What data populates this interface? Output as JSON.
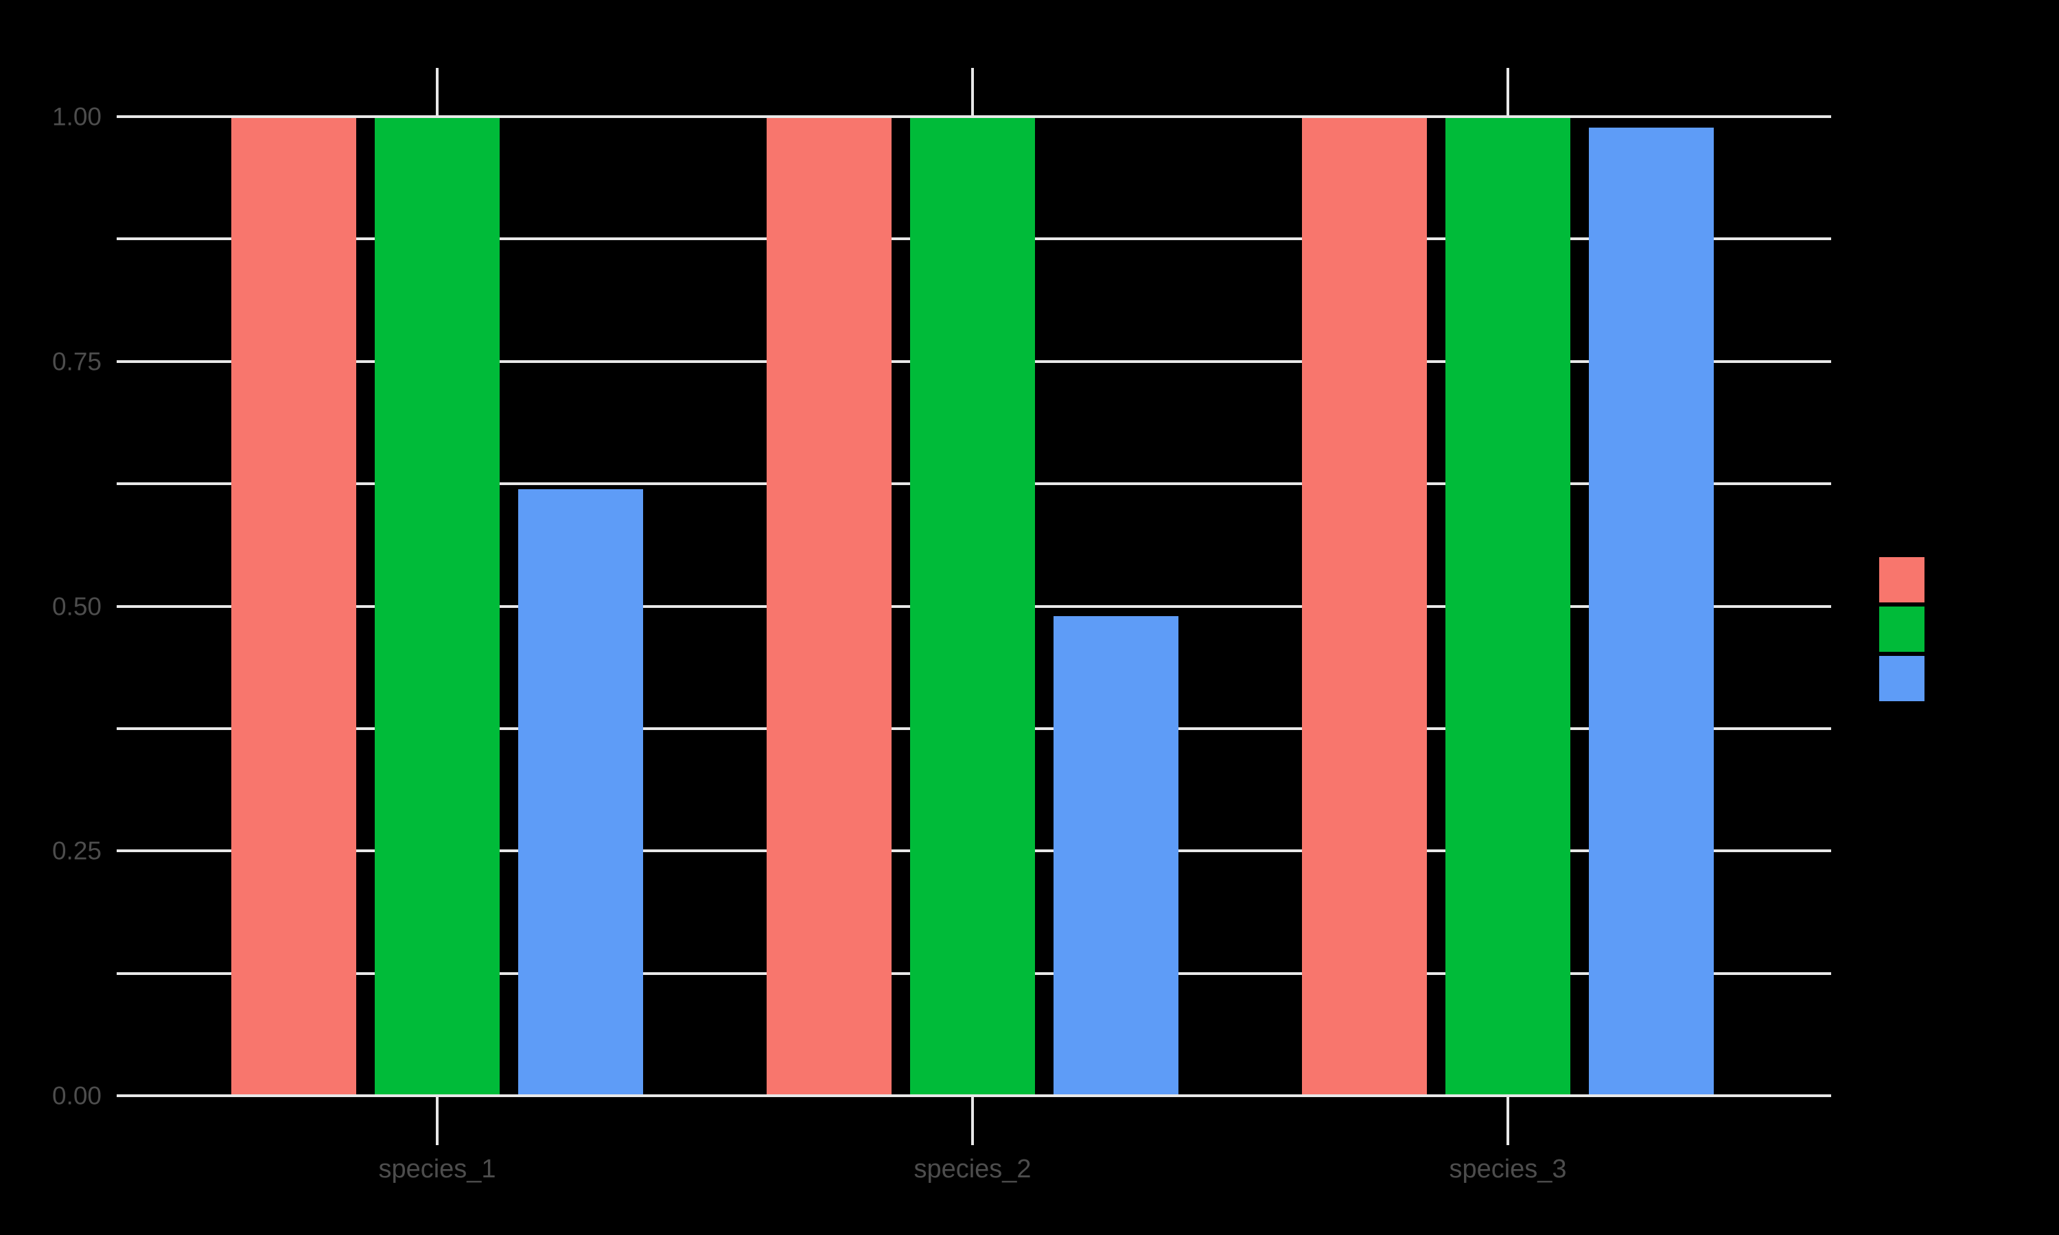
{
  "chart_data": {
    "type": "bar",
    "title": "",
    "categories": [
      "species_1",
      "species_2",
      "species_3"
    ],
    "series": [
      {
        "color": "#F8766D",
        "values": [
          1.0,
          1.0,
          1.0
        ]
      },
      {
        "color": "#00BB39",
        "values": [
          1.0,
          1.0,
          1.0
        ]
      },
      {
        "color": "#5E9CF7",
        "values": [
          0.62,
          0.49,
          0.99
        ]
      }
    ],
    "xlabel": "",
    "ylabel": "",
    "ylim": [
      0,
      1
    ],
    "y_major_ticks": [
      {
        "value": 0.0,
        "label": "0.00"
      },
      {
        "value": 0.25,
        "label": "0.25"
      },
      {
        "value": 0.5,
        "label": "0.50"
      },
      {
        "value": 0.75,
        "label": "0.75"
      },
      {
        "value": 1.0,
        "label": "1.00"
      }
    ],
    "y_minor_tick_values": [
      0.125,
      0.375,
      0.625,
      0.875
    ],
    "grid": "on",
    "legend": {
      "position": "right",
      "labels_visible": false
    }
  },
  "style": {
    "background_color": "#000000",
    "gridline_color": "#E8E8E8",
    "tick_color": "#E8E8E8",
    "axis_text_color": "#4D4D4D"
  }
}
